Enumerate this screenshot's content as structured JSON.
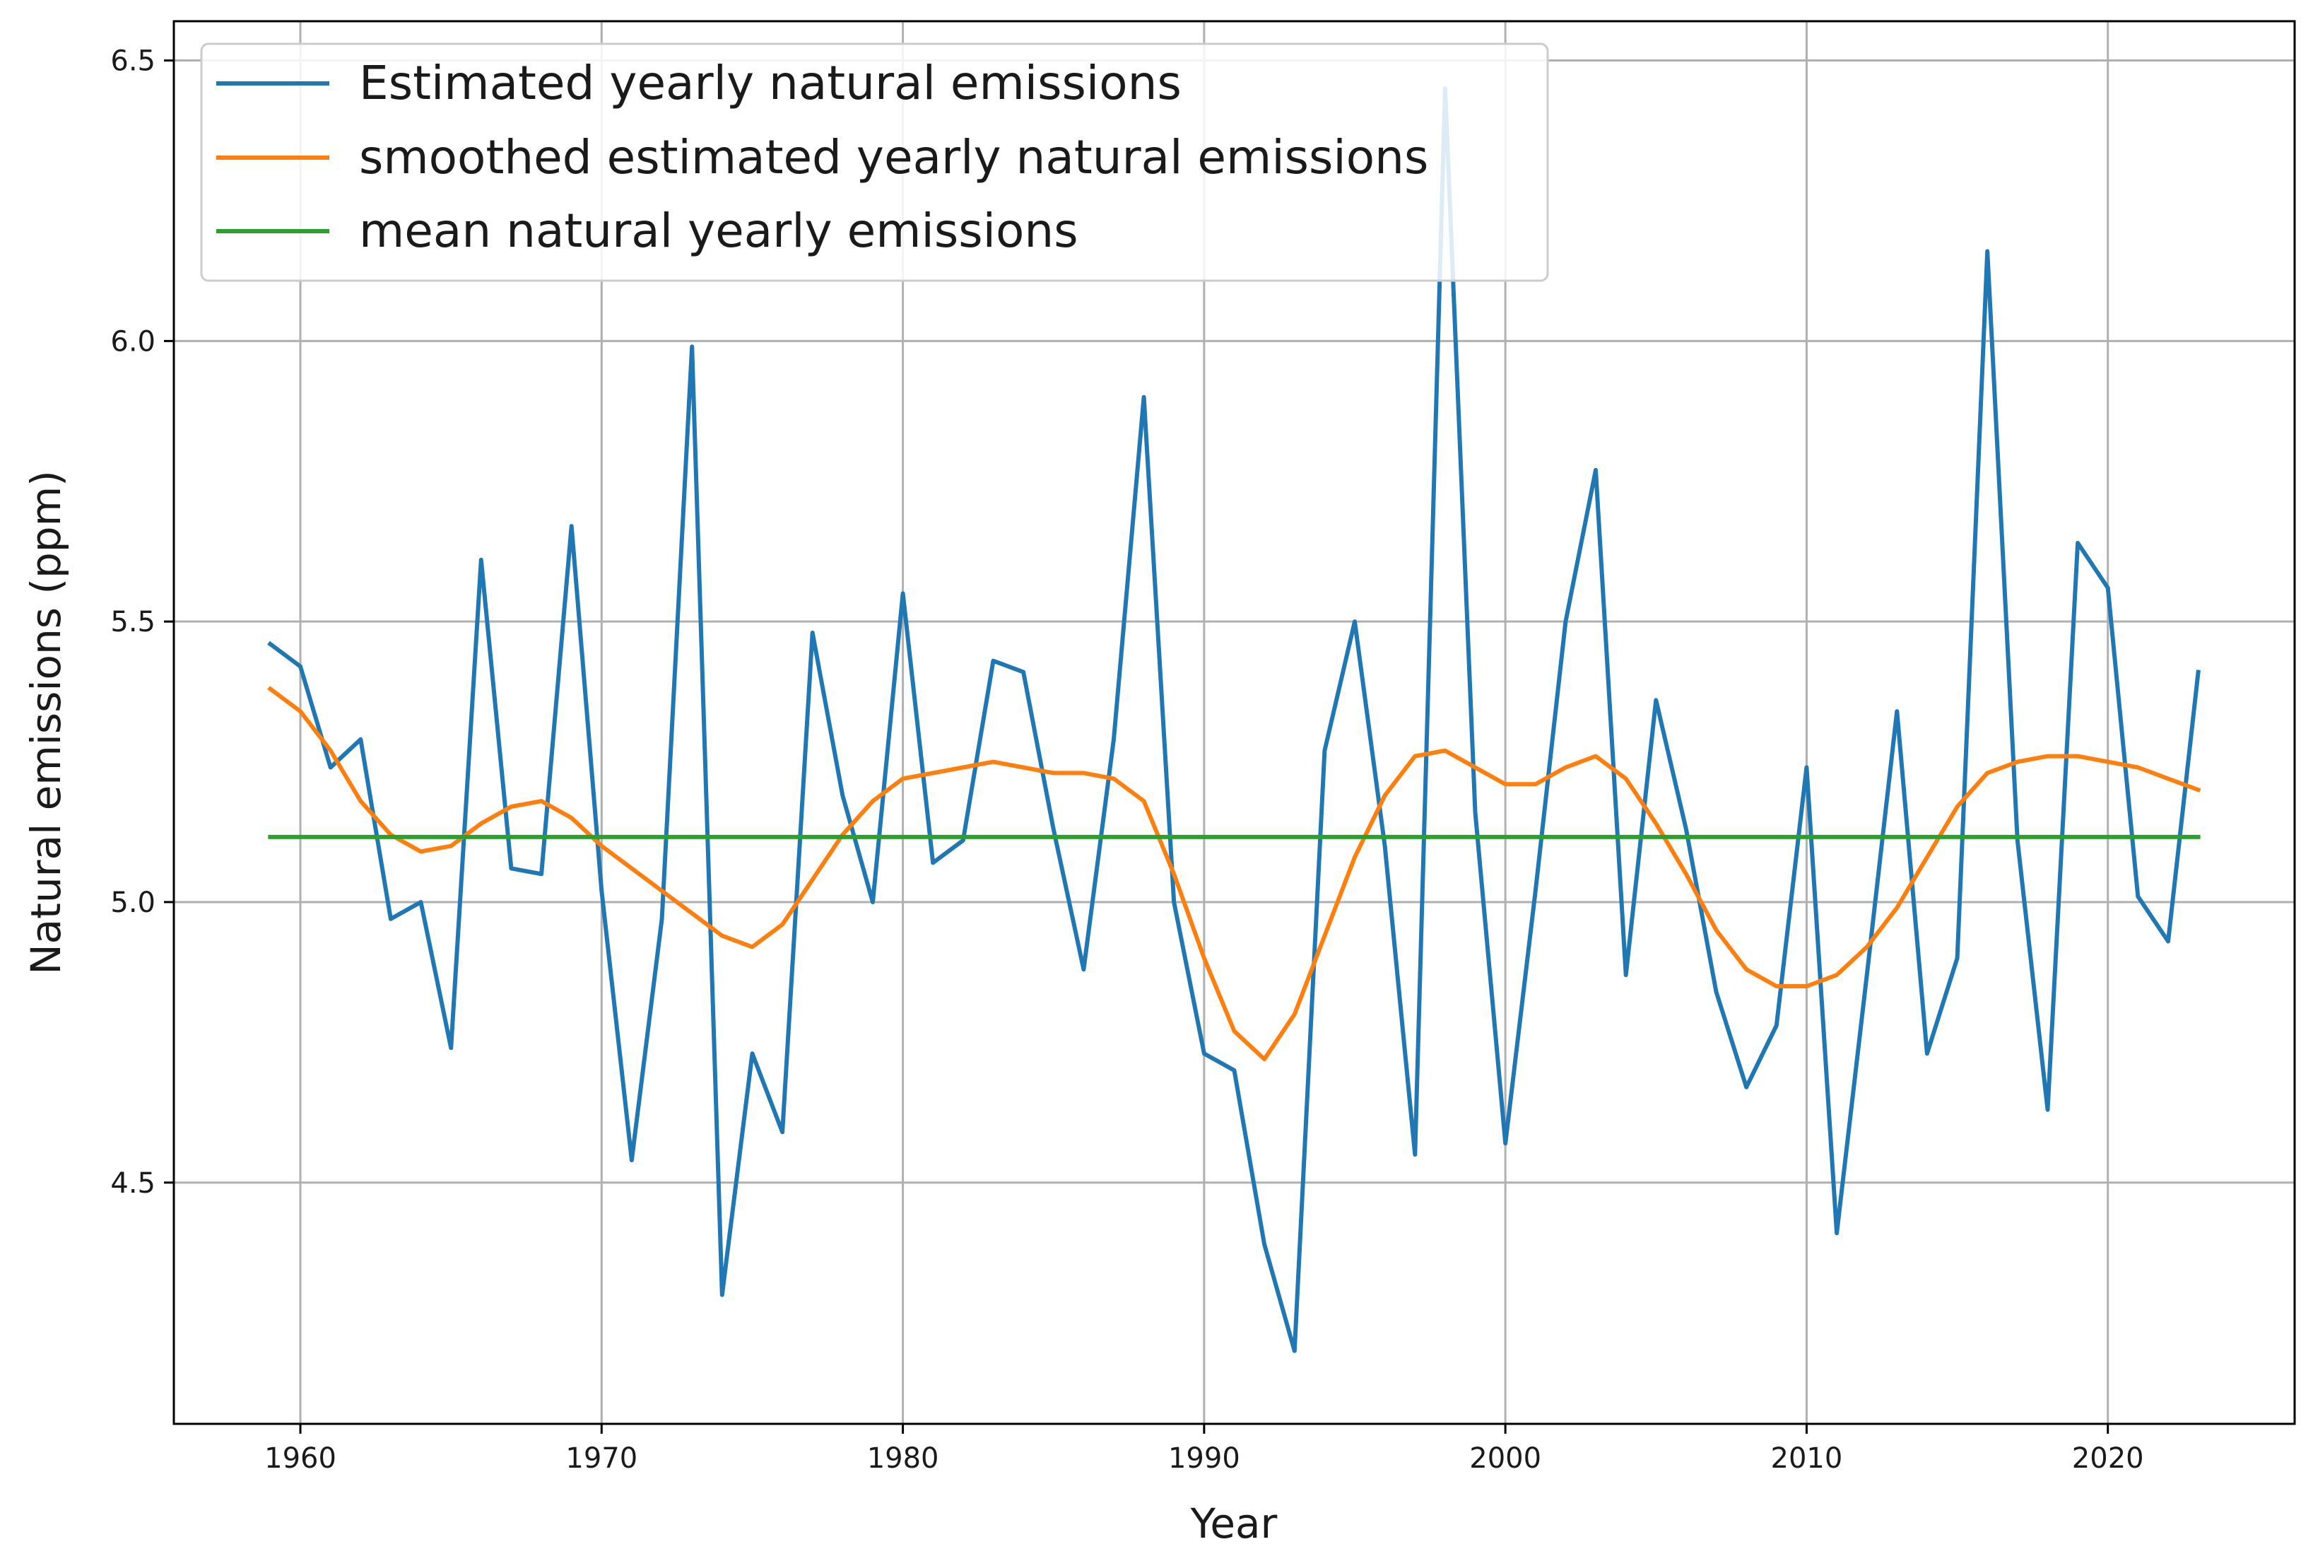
{
  "chart_data": {
    "type": "line",
    "title": "",
    "xlabel": "Year",
    "ylabel": "Natural emissions (ppm)",
    "xlim": [
      1955.8,
      2026.2
    ],
    "ylim": [
      4.07,
      6.57
    ],
    "xticks": [
      1960,
      1970,
      1980,
      1990,
      2000,
      2010,
      2020
    ],
    "xtick_labels": [
      "1960",
      "1970",
      "1980",
      "1990",
      "2000",
      "2010",
      "2020"
    ],
    "yticks": [
      4.5,
      5.0,
      5.5,
      6.0,
      6.5
    ],
    "ytick_labels": [
      "4.5",
      "5.0",
      "5.5",
      "6.0",
      "6.5"
    ],
    "grid": true,
    "legend_position": "upper-left",
    "x": [
      1959,
      1960,
      1961,
      1962,
      1963,
      1964,
      1965,
      1966,
      1967,
      1968,
      1969,
      1970,
      1971,
      1972,
      1973,
      1974,
      1975,
      1976,
      1977,
      1978,
      1979,
      1980,
      1981,
      1982,
      1983,
      1984,
      1985,
      1986,
      1987,
      1988,
      1989,
      1990,
      1991,
      1992,
      1993,
      1994,
      1995,
      1996,
      1997,
      1998,
      1999,
      2000,
      2001,
      2002,
      2003,
      2004,
      2005,
      2006,
      2007,
      2008,
      2009,
      2010,
      2011,
      2012,
      2013,
      2014,
      2015,
      2016,
      2017,
      2018,
      2019,
      2020,
      2021,
      2022,
      2023
    ],
    "series": [
      {
        "name": "Estimated yearly natural emissions",
        "color": "#1f77b4",
        "values": [
          5.46,
          5.42,
          5.24,
          5.29,
          4.97,
          5.0,
          4.74,
          5.61,
          5.06,
          5.05,
          5.67,
          5.02,
          4.54,
          4.97,
          5.99,
          4.3,
          4.73,
          4.59,
          5.48,
          5.19,
          5.0,
          5.55,
          5.07,
          5.11,
          5.43,
          5.41,
          5.13,
          4.88,
          5.29,
          5.9,
          5.0,
          4.73,
          4.7,
          4.39,
          4.2,
          5.27,
          5.5,
          5.1,
          4.55,
          6.45,
          5.16,
          4.57,
          5.02,
          5.5,
          5.77,
          4.87,
          5.36,
          5.13,
          4.84,
          4.67,
          4.78,
          5.24,
          4.41,
          4.87,
          5.34,
          4.73,
          4.9,
          6.16,
          5.11,
          4.63,
          5.64,
          5.56,
          5.01,
          4.93,
          5.41
        ]
      },
      {
        "name": "smoothed estimated yearly natural emissions",
        "color": "#ff7f0e",
        "values": [
          5.38,
          5.34,
          5.27,
          5.18,
          5.12,
          5.09,
          5.1,
          5.14,
          5.17,
          5.18,
          5.15,
          5.1,
          5.06,
          5.02,
          4.98,
          4.94,
          4.92,
          4.96,
          5.04,
          5.12,
          5.18,
          5.22,
          5.23,
          5.24,
          5.25,
          5.24,
          5.23,
          5.23,
          5.22,
          5.18,
          5.05,
          4.9,
          4.77,
          4.72,
          4.8,
          4.94,
          5.08,
          5.19,
          5.26,
          5.27,
          5.24,
          5.21,
          5.21,
          5.24,
          5.26,
          5.22,
          5.14,
          5.05,
          4.95,
          4.88,
          4.85,
          4.85,
          4.87,
          4.92,
          4.99,
          5.08,
          5.17,
          5.23,
          5.25,
          5.26,
          5.26,
          5.25,
          5.24,
          5.22,
          5.2
        ]
      },
      {
        "name": "mean natural yearly emissions",
        "color": "#2ca02c",
        "values": [
          5.116,
          5.116,
          5.116,
          5.116,
          5.116,
          5.116,
          5.116,
          5.116,
          5.116,
          5.116,
          5.116,
          5.116,
          5.116,
          5.116,
          5.116,
          5.116,
          5.116,
          5.116,
          5.116,
          5.116,
          5.116,
          5.116,
          5.116,
          5.116,
          5.116,
          5.116,
          5.116,
          5.116,
          5.116,
          5.116,
          5.116,
          5.116,
          5.116,
          5.116,
          5.116,
          5.116,
          5.116,
          5.116,
          5.116,
          5.116,
          5.116,
          5.116,
          5.116,
          5.116,
          5.116,
          5.116,
          5.116,
          5.116,
          5.116,
          5.116,
          5.116,
          5.116,
          5.116,
          5.116,
          5.116,
          5.116,
          5.116,
          5.116,
          5.116,
          5.116,
          5.116,
          5.116,
          5.116,
          5.116,
          5.116
        ]
      }
    ]
  }
}
